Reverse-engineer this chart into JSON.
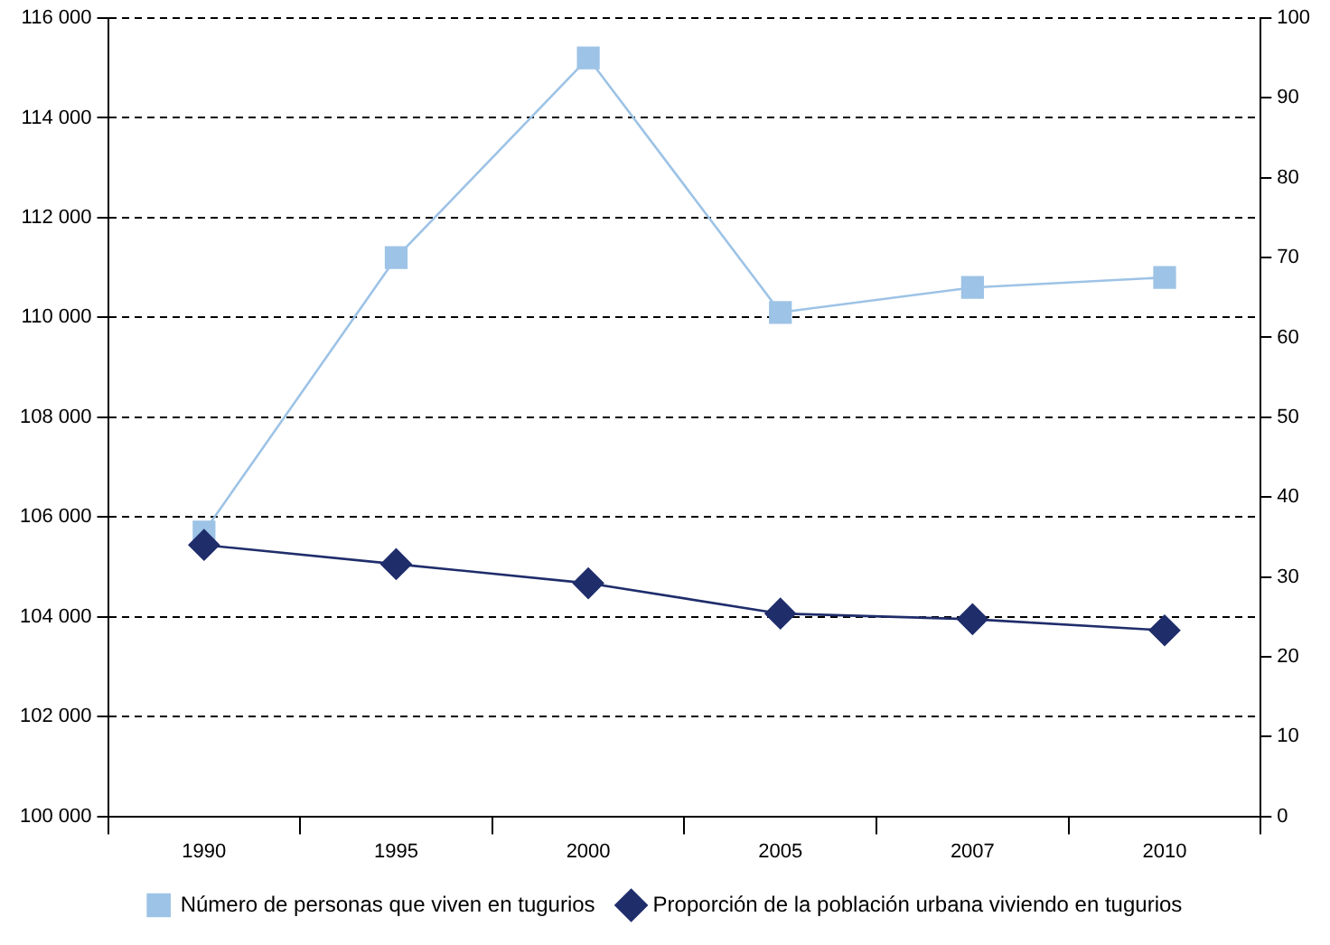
{
  "chart_data": {
    "type": "line",
    "categories": [
      "1990",
      "1995",
      "2000",
      "2005",
      "2007",
      "2010"
    ],
    "series": [
      {
        "name": "Número de personas que viven en tugurios",
        "color": "#9dc3e6",
        "marker": "square",
        "values": [
          105700,
          111200,
          115200,
          110100,
          110600,
          110800
        ]
      },
      {
        "name": "Proporción de la población urbana viviendo en tugurios",
        "color": "#1f2d6b",
        "marker": "diamond",
        "axis": "y2",
        "values": [
          34.0,
          31.6,
          29.2,
          25.4,
          24.7,
          23.3
        ]
      }
    ],
    "ylim": [
      100000,
      116000
    ],
    "yticks": [
      {
        "value": 100000,
        "label": "100 000"
      },
      {
        "value": 102000,
        "label": "102 000"
      },
      {
        "value": 104000,
        "label": "104 000"
      },
      {
        "value": 106000,
        "label": "106 000"
      },
      {
        "value": 108000,
        "label": "108 000"
      },
      {
        "value": 110000,
        "label": "110 000"
      },
      {
        "value": 112000,
        "label": "112 000"
      },
      {
        "value": 114000,
        "label": "114 000"
      },
      {
        "value": 116000,
        "label": "116 000"
      }
    ],
    "y2lim": [
      0,
      100
    ],
    "y2ticks": [
      0,
      10,
      20,
      30,
      40,
      50,
      60,
      70,
      80,
      90,
      100
    ],
    "grid": "y",
    "legend": "bottom",
    "line_style": "solid"
  }
}
